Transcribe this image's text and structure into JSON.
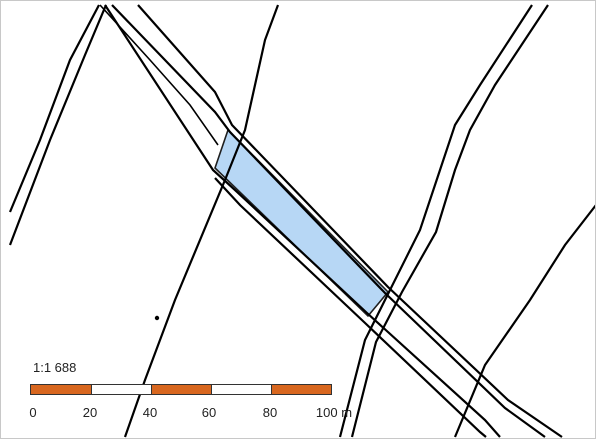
{
  "map": {
    "parcel_highlight_color": "#b7d7f5",
    "parcel_outline_color": "#1f1f1f",
    "line_color": "#000000",
    "background_color": "#ffffff"
  },
  "scale": {
    "ratio_label": "1:1 688",
    "ticks": [
      "0",
      "20",
      "40",
      "60",
      "80",
      "100 m"
    ],
    "segment_colors": [
      "#d8671f",
      "#ffffff",
      "#d8671f",
      "#ffffff",
      "#d8671f"
    ]
  }
}
